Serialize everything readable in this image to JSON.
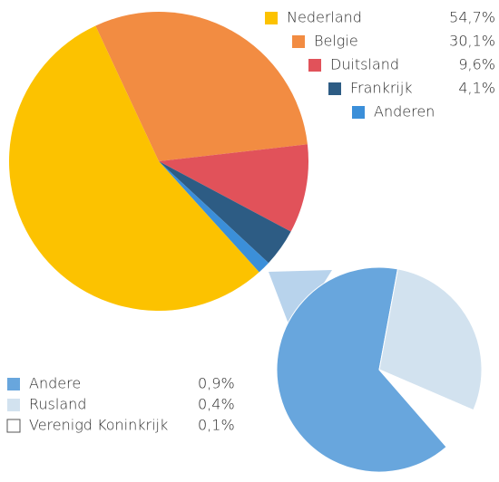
{
  "chart_data": [
    {
      "type": "pie",
      "categories": [
        "Nederland",
        "Belgie",
        "Duitsland",
        "Frankrijk",
        "Anderen"
      ],
      "values": [
        54.7,
        30.1,
        9.6,
        4.1,
        1.4
      ],
      "value_labels": [
        "54,7%",
        "30,1%",
        "9,6%",
        "4,1%",
        null
      ],
      "colors": [
        "#fcc200",
        "#f28c42",
        "#e1525a",
        "#2d5c84",
        "#3b8fd9"
      ]
    },
    {
      "type": "pie",
      "categories": [
        "Andere",
        "Rusland",
        "Verenigd Koninkrijk"
      ],
      "values": [
        0.9,
        0.4,
        0.1
      ],
      "value_labels": [
        "0,9%",
        "0,4%",
        "0,1%"
      ],
      "colors": [
        "#68a6dd",
        "#d2e2ef",
        "#ffffff"
      ]
    }
  ]
}
